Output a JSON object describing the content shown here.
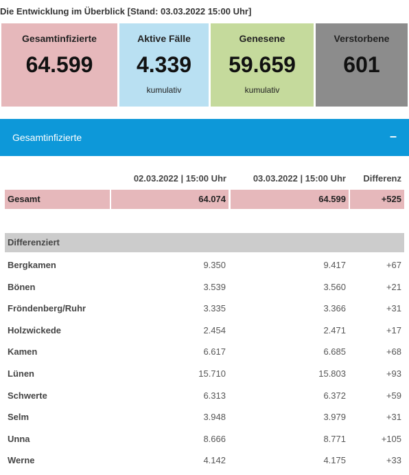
{
  "heading": "Die Entwicklung im Überblick [Stand: 03.03.2022 15:00 Uhr]",
  "cards": [
    {
      "label": "Gesamtinfizierte",
      "value": "64.599",
      "sub": ""
    },
    {
      "label": "Aktive Fälle",
      "value": "4.339",
      "sub": "kumulativ"
    },
    {
      "label": "Genesene",
      "value": "59.659",
      "sub": "kumulativ"
    },
    {
      "label": "Verstorbene",
      "value": "601",
      "sub": ""
    }
  ],
  "accordion": {
    "title": "Gesamtinfizierte",
    "toggle": "–"
  },
  "table": {
    "columns": [
      "02.03.2022 | 15:00 Uhr",
      "03.03.2022 | 15:00 Uhr",
      "Differenz"
    ],
    "total": {
      "name": "Gesamt",
      "v1": "64.074",
      "v2": "64.599",
      "diff": "+525"
    },
    "section": "Differenziert",
    "rows": [
      {
        "name": "Bergkamen",
        "v1": "9.350",
        "v2": "9.417",
        "diff": "+67"
      },
      {
        "name": "Bönen",
        "v1": "3.539",
        "v2": "3.560",
        "diff": "+21"
      },
      {
        "name": "Fröndenberg/Ruhr",
        "v1": "3.335",
        "v2": "3.366",
        "diff": "+31"
      },
      {
        "name": "Holzwickede",
        "v1": "2.454",
        "v2": "2.471",
        "diff": "+17"
      },
      {
        "name": "Kamen",
        "v1": "6.617",
        "v2": "6.685",
        "diff": "+68"
      },
      {
        "name": "Lünen",
        "v1": "15.710",
        "v2": "15.803",
        "diff": "+93"
      },
      {
        "name": "Schwerte",
        "v1": "6.313",
        "v2": "6.372",
        "diff": "+59"
      },
      {
        "name": "Selm",
        "v1": "3.948",
        "v2": "3.979",
        "diff": "+31"
      },
      {
        "name": "Unna",
        "v1": "8.666",
        "v2": "8.771",
        "diff": "+105"
      },
      {
        "name": "Werne",
        "v1": "4.142",
        "v2": "4.175",
        "diff": "+33"
      }
    ]
  }
}
